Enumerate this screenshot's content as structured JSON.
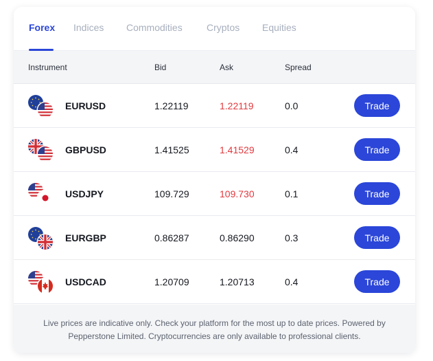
{
  "tabs": [
    {
      "label": "Forex",
      "active": true
    },
    {
      "label": "Indices",
      "active": false
    },
    {
      "label": "Commodities",
      "active": false
    },
    {
      "label": "Cryptos",
      "active": false
    },
    {
      "label": "Equities",
      "active": false
    }
  ],
  "table": {
    "headers": {
      "instrument": "Instrument",
      "bid": "Bid",
      "ask": "Ask",
      "spread": "Spread"
    },
    "rows": [
      {
        "instrument": "EURUSD",
        "bid": "1.22119",
        "ask": "1.22119",
        "ask_up": true,
        "spread": "0.0",
        "trade_label": "Trade",
        "flags": [
          "eu-flag-icon",
          "us-flag-icon"
        ]
      },
      {
        "instrument": "GBPUSD",
        "bid": "1.41525",
        "ask": "1.41529",
        "ask_up": true,
        "spread": "0.4",
        "trade_label": "Trade",
        "flags": [
          "uk-flag-icon",
          "us-flag-icon"
        ]
      },
      {
        "instrument": "USDJPY",
        "bid": "109.729",
        "ask": "109.730",
        "ask_up": true,
        "spread": "0.1",
        "trade_label": "Trade",
        "flags": [
          "us-flag-icon",
          "japan-flag-icon"
        ]
      },
      {
        "instrument": "EURGBP",
        "bid": "0.86287",
        "ask": "0.86290",
        "ask_up": false,
        "spread": "0.3",
        "trade_label": "Trade",
        "flags": [
          "eu-flag-icon",
          "uk-flag-icon"
        ]
      },
      {
        "instrument": "USDCAD",
        "bid": "1.20709",
        "ask": "1.20713",
        "ask_up": false,
        "spread": "0.4",
        "trade_label": "Trade",
        "flags": [
          "us-flag-icon",
          "canada-flag-icon"
        ]
      }
    ]
  },
  "footer": {
    "disclaimer": "Live prices are indicative only. Check your platform for the most up to date prices. Powered by Pepperstone Limited. Cryptocurrencies are only available to professional clients."
  },
  "colors": {
    "accent": "#2b46d8",
    "ask_up": "#e0393e",
    "tab_inactive": "#a7afbd"
  }
}
